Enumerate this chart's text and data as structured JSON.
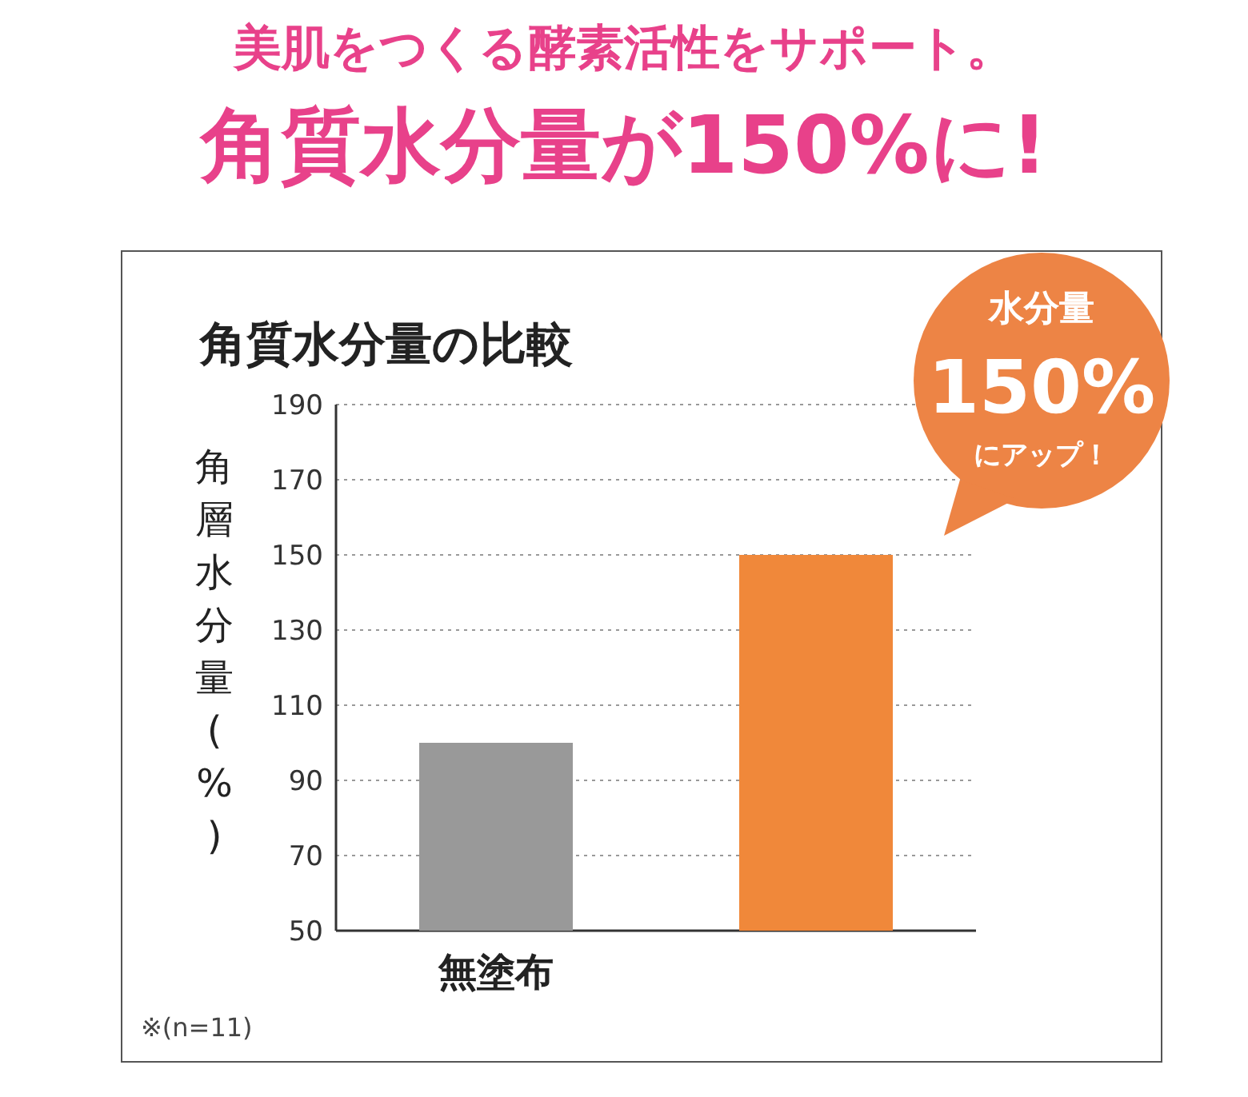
{
  "chart_data": {
    "type": "bar",
    "title": "美肌をつくる酵素活性をサポート。",
    "subtitle": "角質水分量が150%に!",
    "ylabel": "角層水分量(%)",
    "categories": [
      "無塗布",
      null
    ],
    "series": [
      {
        "values": [
          100,
          150
        ],
        "colors": [
          "#999999",
          "#f0883a"
        ]
      }
    ],
    "ylim": [
      50,
      190
    ],
    "yticks": [
      50,
      70,
      90,
      110,
      130,
      150,
      170,
      190
    ],
    "grid": "y",
    "annotations": [
      "角質水分量の比較",
      "水分量",
      "150%",
      "にアップ！",
      "※(n=11)"
    ]
  }
}
